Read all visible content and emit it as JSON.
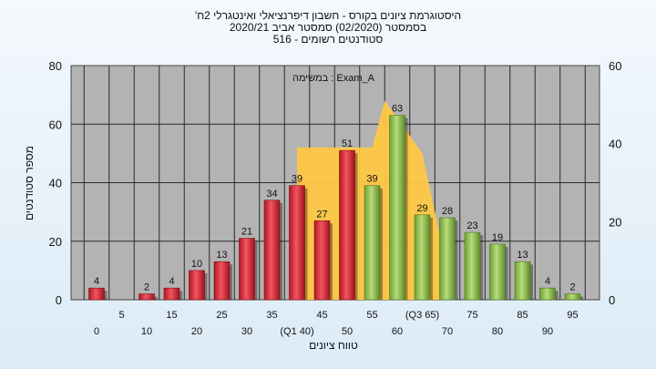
{
  "titles": {
    "line1": "'היסטוגרמת ציונים בקורס - חשבון דיפרנציאלי ואינטגרלי 2ח",
    "line2": "בסמסטר  (02/2020)  סמסטר אביב 2020/21",
    "line3": "516 - סטודנטים רשומים"
  },
  "chart_data": {
    "type": "bar",
    "annotation": "במשימה : Exam_A",
    "xlabel": "טווח ציונים",
    "ylabel": "מספר סטודנטים",
    "ylim": [
      0,
      80
    ],
    "y2lim": [
      0,
      60
    ],
    "yticks": [
      "0",
      "20",
      "40",
      "60",
      "80"
    ],
    "y2ticks": [
      "0",
      "20",
      "40",
      "60"
    ],
    "grid": true,
    "categories": [
      0,
      5,
      10,
      15,
      20,
      25,
      30,
      35,
      40,
      45,
      50,
      55,
      60,
      65,
      70,
      75,
      80,
      85,
      90,
      95
    ],
    "tick_labels": [
      "0",
      "5",
      "10",
      "15",
      "20",
      "25",
      "30",
      "35",
      "(Q1 40)",
      "45",
      "50",
      "55",
      "60",
      "(Q3 65)",
      "70",
      "75",
      "80",
      "85",
      "90",
      "95"
    ],
    "values": [
      4,
      0,
      2,
      4,
      10,
      13,
      21,
      34,
      39,
      27,
      51,
      39,
      63,
      29,
      28,
      23,
      19,
      13,
      4,
      2
    ],
    "value_labels": [
      "4",
      "",
      "2",
      "4",
      "10",
      "13",
      "21",
      "34",
      "39",
      "27",
      "51",
      "39",
      "63",
      "29",
      "28",
      "23",
      "19",
      "13",
      "4",
      "2"
    ],
    "bar_colors": [
      "red",
      "red",
      "red",
      "red",
      "red",
      "red",
      "red",
      "red",
      "red",
      "red",
      "red",
      "green",
      "green",
      "green",
      "green",
      "green",
      "green",
      "green",
      "green",
      "green"
    ],
    "colors": {
      "red": "#dd2a35",
      "green": "#8cc04a",
      "distribution_fill": "#ffc845",
      "plot_background": "#b3b3b3"
    }
  }
}
